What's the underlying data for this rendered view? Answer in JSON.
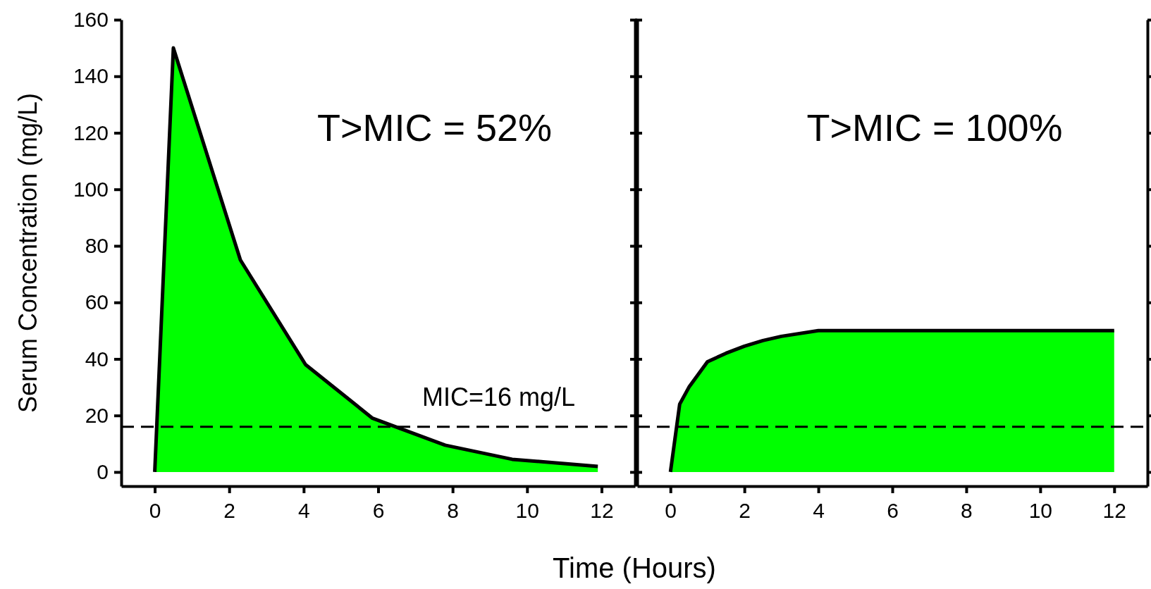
{
  "chart_data": [
    {
      "type": "area",
      "ylabel": "Serum Concentration (mg/L)",
      "xlabel": "Time (Hours)",
      "xlim": [
        -0.9,
        12.9
      ],
      "ylim": [
        -5,
        160
      ],
      "xticks": [
        0,
        2,
        4,
        6,
        8,
        10,
        12
      ],
      "yticks": [
        0,
        20,
        40,
        60,
        80,
        100,
        120,
        140,
        160
      ],
      "series": [
        {
          "color": "#00ff00",
          "x": [
            0,
            0.5,
            2.3,
            4.05,
            5.85,
            7.8,
            9.6,
            11.9
          ],
          "values": [
            0,
            150,
            75,
            38,
            19,
            9.5,
            4.5,
            2
          ]
        }
      ],
      "ref_lines": [
        {
          "axis": "y",
          "value": 16,
          "label": "MIC=16 mg/L",
          "line_style": "dashed",
          "color": "#000000"
        }
      ],
      "annotations": [
        "T>MIC = 52%"
      ]
    },
    {
      "type": "area",
      "xlim": [
        -0.9,
        12.9
      ],
      "ylim": [
        -5,
        160
      ],
      "xticks": [
        0,
        2,
        4,
        6,
        8,
        10,
        12
      ],
      "yticks": [
        0,
        20,
        40,
        60,
        80,
        100,
        120,
        140,
        160
      ],
      "tick_labels": "x",
      "series": [
        {
          "color": "#00ff00",
          "x": [
            0,
            0.25,
            0.5,
            1,
            1.5,
            2,
            2.5,
            3,
            4,
            12
          ],
          "values": [
            0,
            24,
            30,
            39,
            42,
            44.5,
            46.5,
            48,
            50,
            50
          ]
        }
      ],
      "ref_lines": [
        {
          "axis": "y",
          "value": 16,
          "line_style": "dashed",
          "color": "#000000"
        }
      ],
      "annotations": [
        "T>MIC = 100%"
      ]
    }
  ]
}
